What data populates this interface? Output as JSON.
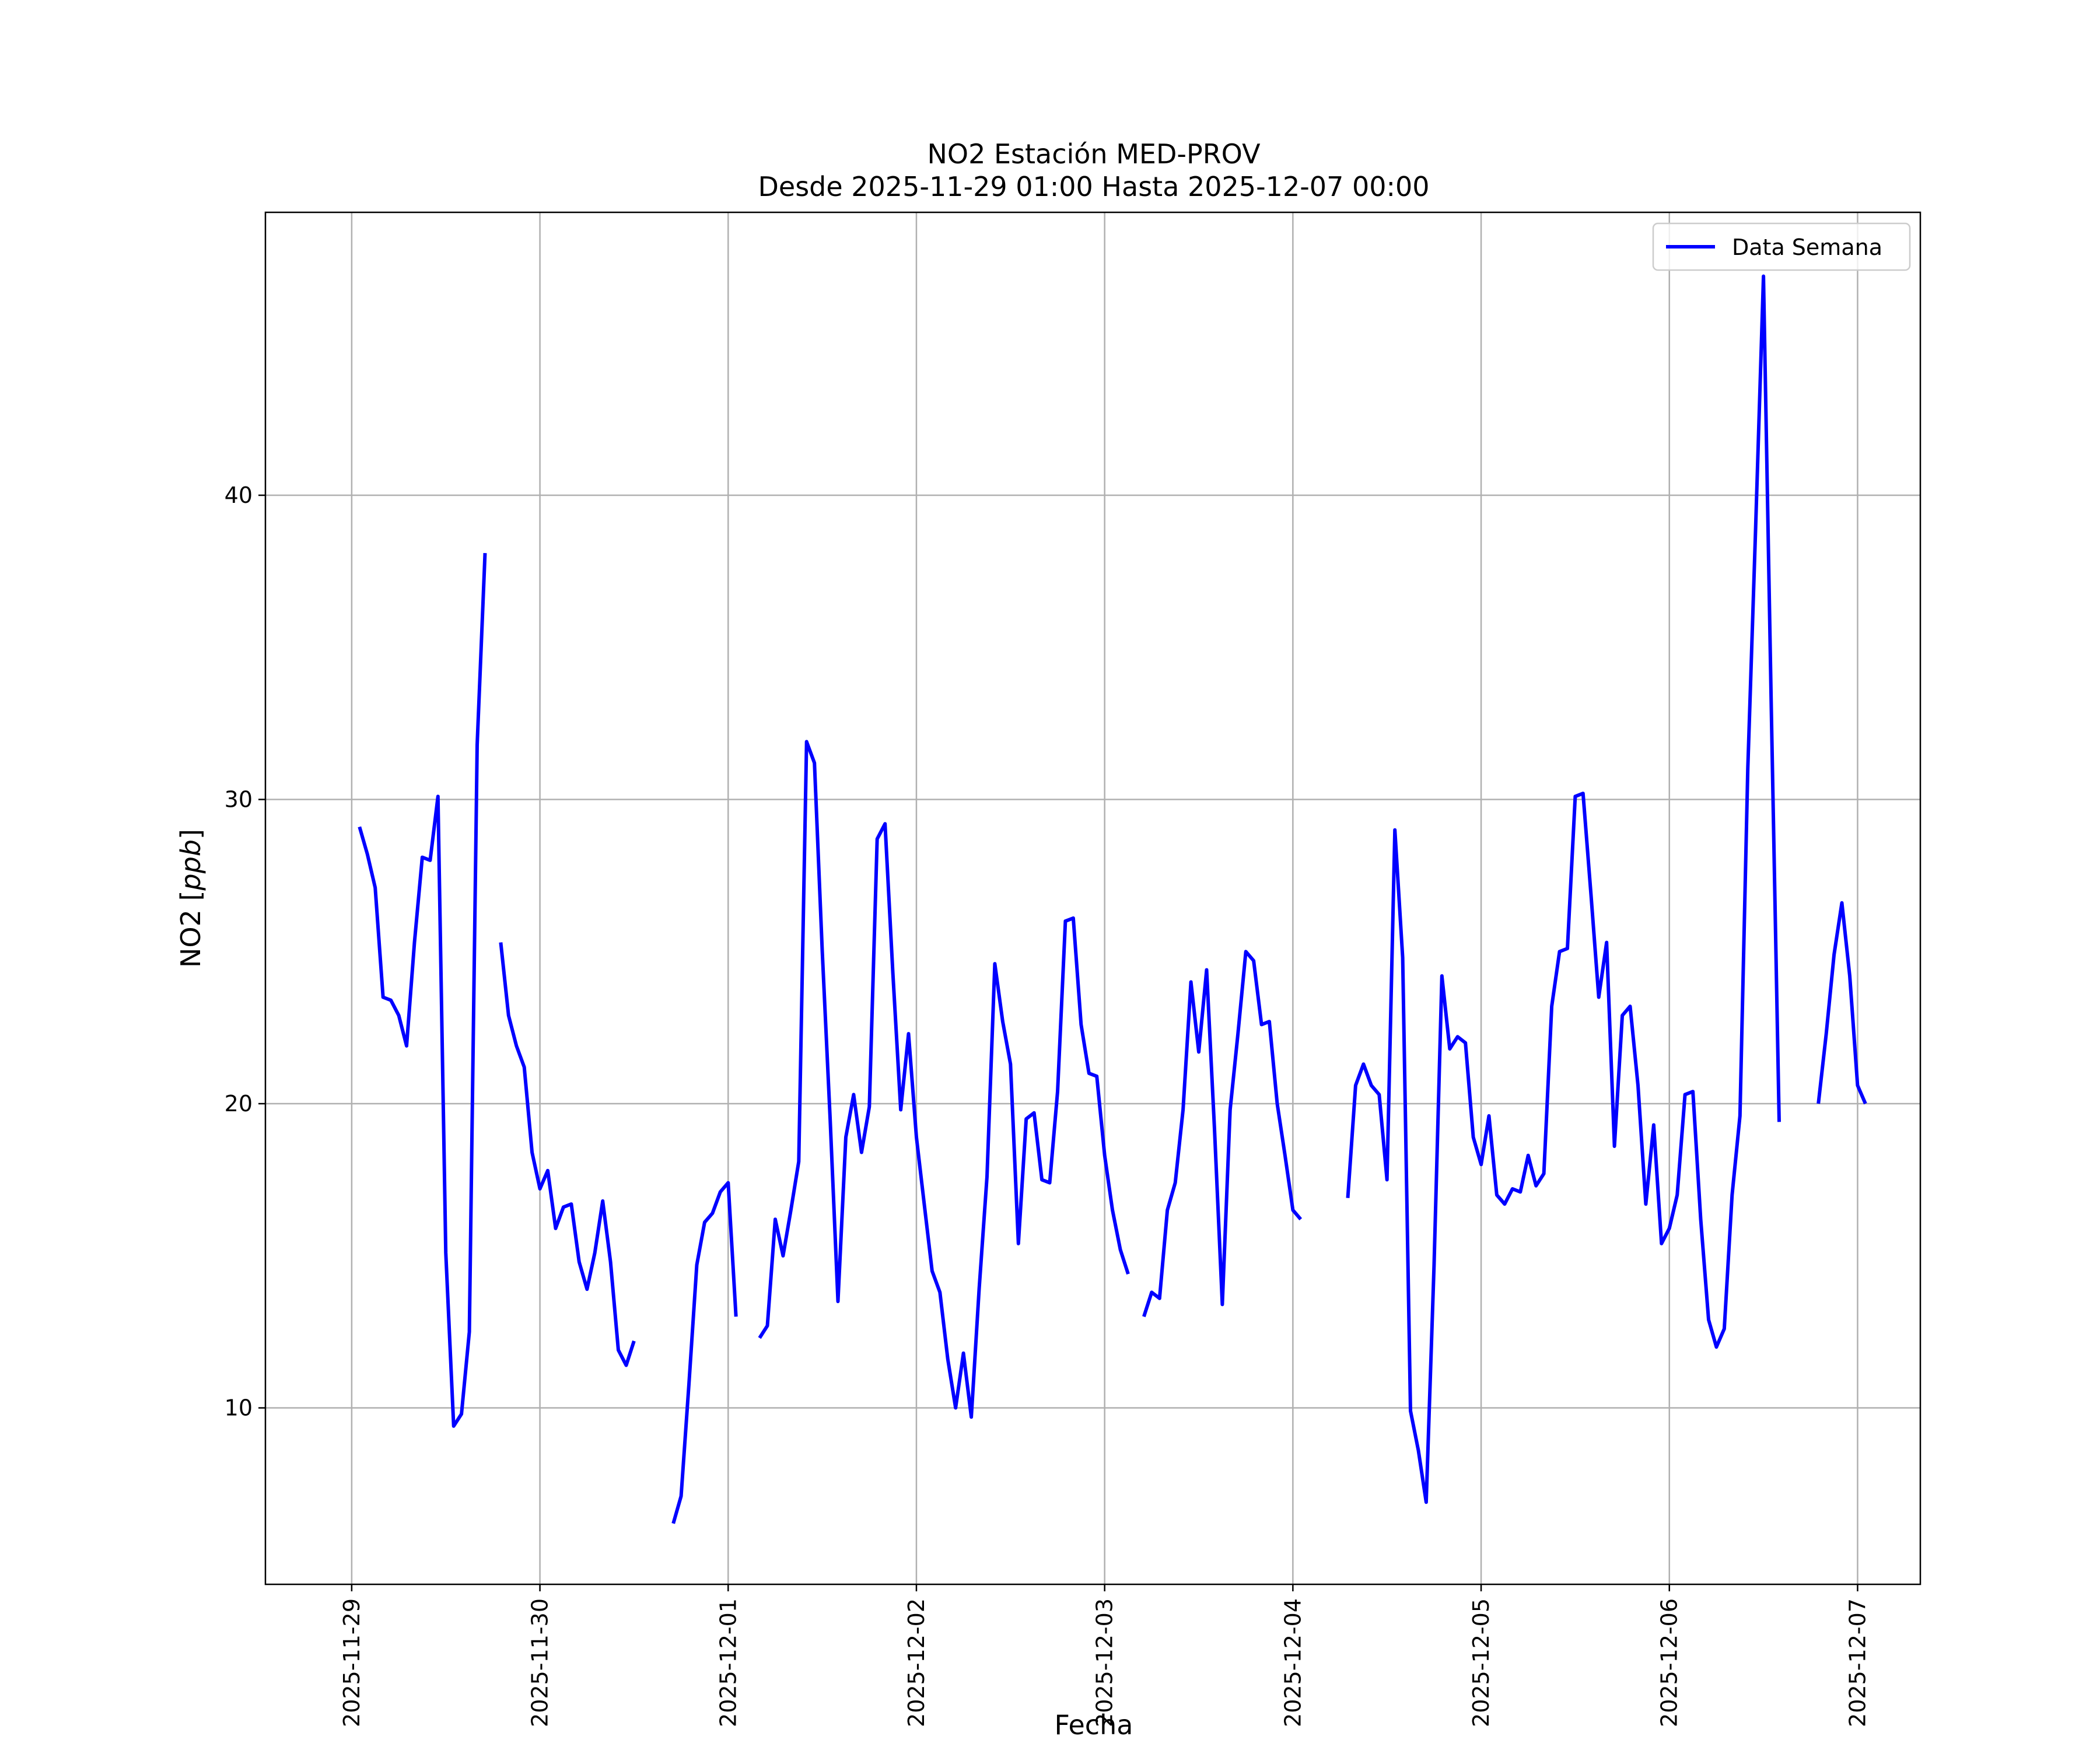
{
  "chart_data": {
    "type": "line",
    "title": "NO2 Estación MED-PROV",
    "subtitle": "Desde 2025-11-29 01:00 Hasta 2025-12-07 00:00",
    "xlabel": "Fecha",
    "ylabel_text": "NO2 [",
    "ylabel_unit": "ppb",
    "ylabel_close": "]",
    "xlim": [
      "2025-11-28 13:00",
      "2025-12-07 08:00"
    ],
    "ylim": [
      4.2,
      49.3
    ],
    "x_ticks": [
      "2025-11-29",
      "2025-11-30",
      "2025-12-01",
      "2025-12-02",
      "2025-12-03",
      "2025-12-04",
      "2025-12-05",
      "2025-12-06",
      "2025-12-07"
    ],
    "y_ticks": [
      "10",
      "20",
      "30",
      "40"
    ],
    "grid": true,
    "legend": {
      "position": "top-right",
      "label": "Data Semana"
    },
    "series": [
      {
        "name": "Data Semana",
        "color": "#0000ff",
        "start": "2025-11-29 01:00",
        "interval_hours": 1,
        "values": [
          29.1,
          28.2,
          27.1,
          23.5,
          23.4,
          22.9,
          21.9,
          25.3,
          28.1,
          28.0,
          30.1,
          15.1,
          9.4,
          9.8,
          12.5,
          31.8,
          38.1,
          null,
          25.3,
          22.9,
          21.9,
          21.2,
          18.4,
          17.2,
          17.8,
          15.9,
          16.6,
          16.7,
          14.8,
          13.9,
          15.1,
          16.8,
          14.8,
          11.9,
          11.4,
          12.2,
          null,
          null,
          null,
          null,
          6.2,
          7.1,
          10.8,
          14.7,
          16.1,
          16.4,
          17.1,
          17.4,
          13.0,
          null,
          null,
          12.3,
          12.7,
          16.2,
          15.0,
          16.5,
          18.1,
          31.9,
          31.2,
          25.0,
          19.5,
          13.5,
          18.9,
          20.3,
          18.4,
          19.9,
          28.7,
          29.2,
          24.3,
          19.8,
          22.3,
          18.9,
          16.7,
          14.5,
          13.8,
          11.6,
          10.0,
          11.8,
          9.7,
          13.9,
          17.6,
          24.6,
          22.7,
          21.3,
          15.4,
          19.5,
          19.7,
          17.5,
          17.4,
          20.4,
          26.0,
          26.1,
          22.6,
          21.0,
          20.9,
          18.3,
          16.5,
          15.2,
          14.4,
          null,
          13.0,
          13.8,
          13.6,
          16.5,
          17.4,
          19.8,
          24.0,
          21.7,
          24.4,
          19.2,
          13.4,
          19.8,
          22.3,
          25.0,
          24.7,
          22.6,
          22.7,
          20.0,
          18.3,
          16.5,
          16.2,
          null,
          null,
          null,
          null,
          null,
          16.9,
          20.6,
          21.3,
          20.6,
          20.3,
          17.5,
          29.0,
          24.8,
          9.9,
          8.6,
          6.9,
          14.7,
          24.2,
          21.8,
          22.2,
          22.0,
          18.9,
          18.0,
          19.6,
          17.0,
          16.7,
          17.2,
          17.1,
          18.3,
          17.3,
          17.7,
          23.2,
          25.0,
          25.1,
          30.1,
          30.2,
          26.9,
          23.5,
          25.3,
          18.6,
          22.9,
          23.2,
          20.6,
          16.7,
          19.3,
          15.4,
          15.9,
          17.0,
          20.3,
          20.4,
          16.2,
          12.9,
          12.0,
          12.6,
          17.0,
          19.6,
          31.0,
          38.9,
          47.2,
          33.0,
          19.4,
          null,
          null,
          null,
          null,
          20.0,
          22.3,
          24.9,
          26.6,
          24.2,
          20.6,
          20.0
        ]
      }
    ]
  }
}
